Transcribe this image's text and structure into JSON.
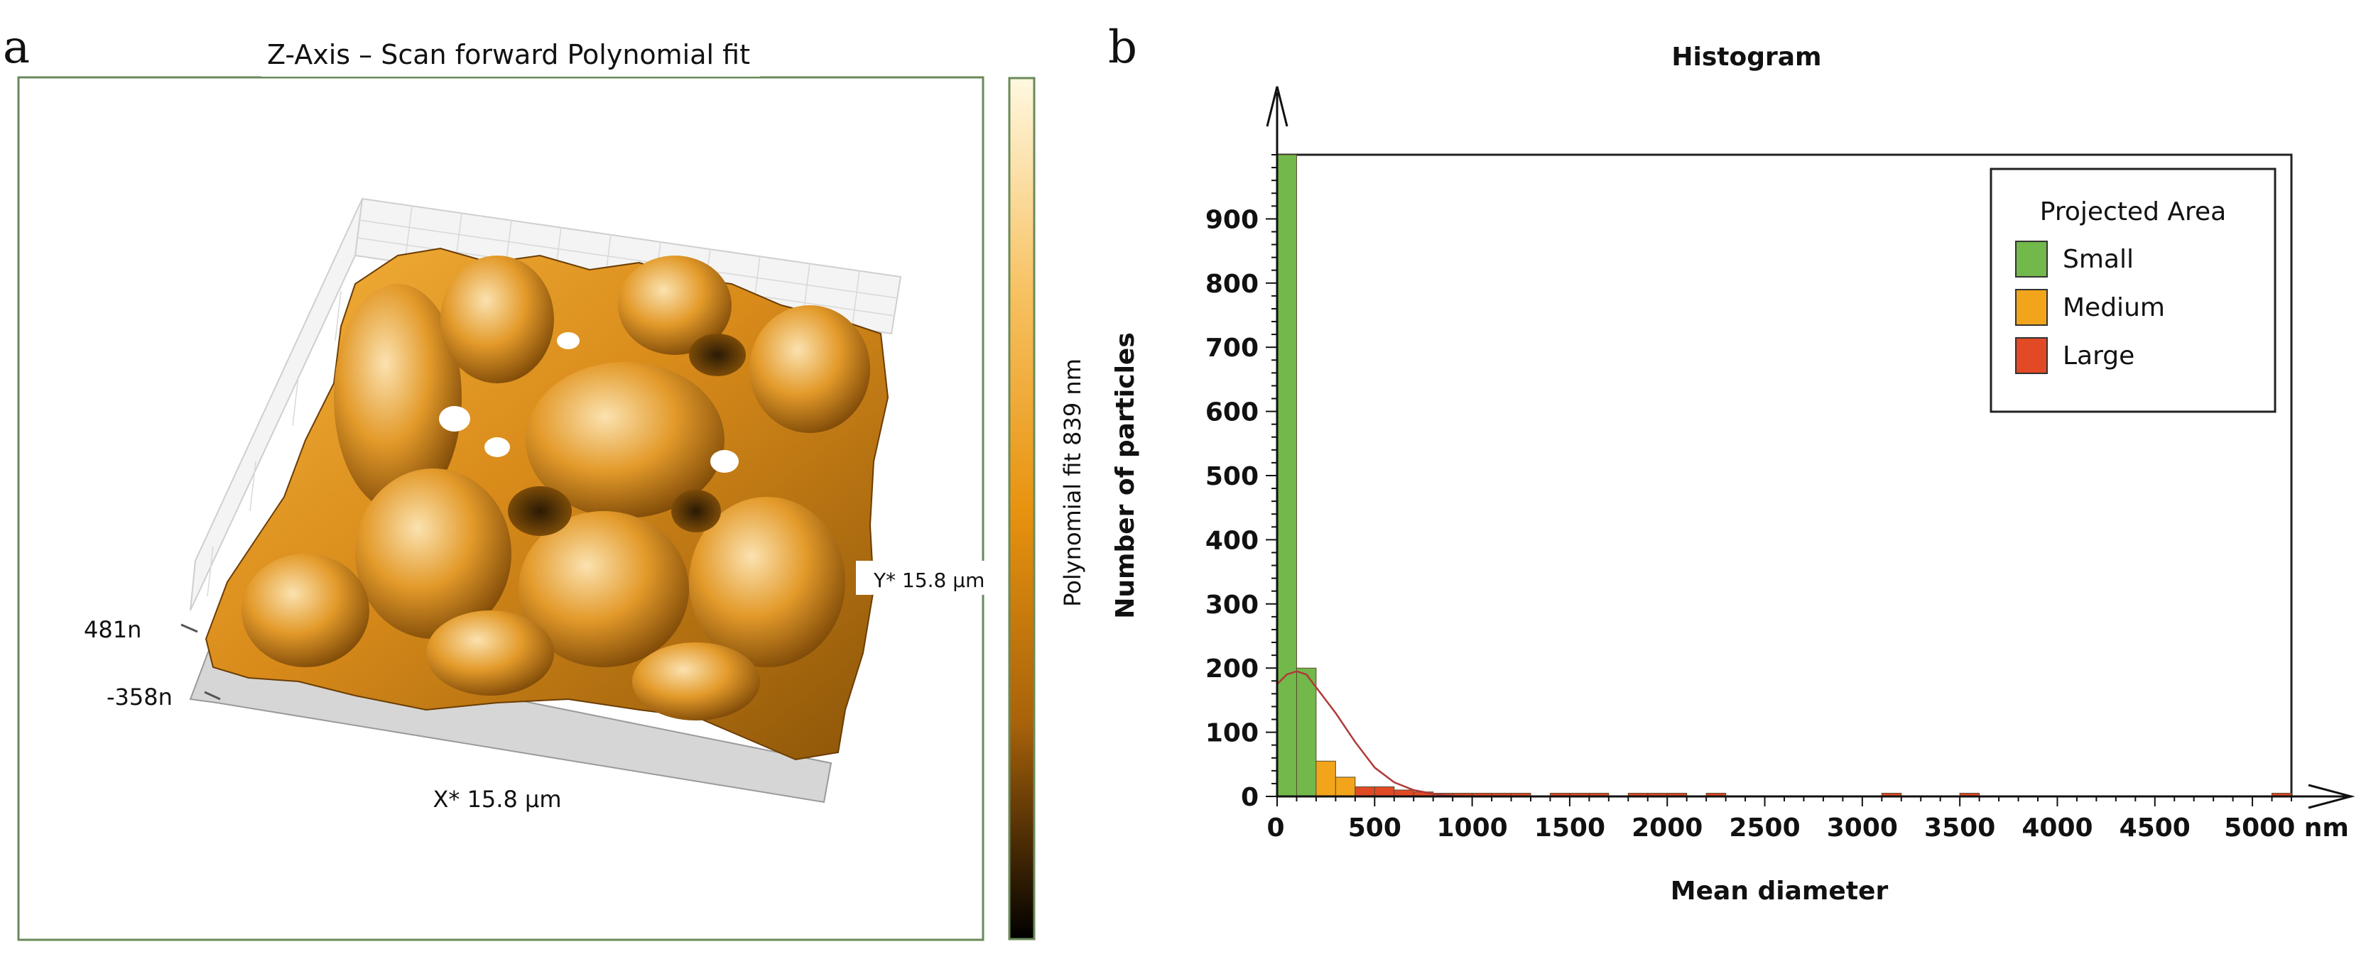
{
  "panel_a": {
    "letter": "a",
    "title": "Z-Axis – Scan forward Polynomial fit",
    "colorbar_label": "Polynomial fit 839 nm",
    "z_top_label": "481n",
    "z_bottom_label": "-358n",
    "x_axis_label": "X* 15.8 µm",
    "y_axis_label": "Y* 15.8 µm",
    "colorbar_colors": [
      "#fff8e0",
      "#f7c161",
      "#e8930f",
      "#a8620a",
      "#000000"
    ],
    "surface_color": "#d98b1a"
  },
  "panel_b": {
    "letter": "b"
  },
  "chart_data": {
    "type": "bar",
    "title": "Histogram",
    "xlabel": "Mean diameter",
    "ylabel": "Number of particles",
    "x_unit": "nm",
    "xlim": [
      0,
      5200
    ],
    "ylim": [
      0,
      1000
    ],
    "xticks": [
      0,
      500,
      1000,
      1500,
      2000,
      2500,
      3000,
      3500,
      4000,
      4500,
      5000
    ],
    "xtick_labels": [
      "0",
      "500",
      "1000",
      "1500",
      "2000",
      "2500",
      "3000",
      "3500",
      "4000",
      "4500",
      "5000 nm"
    ],
    "yticks": [
      0,
      100,
      200,
      300,
      400,
      500,
      600,
      700,
      800,
      900
    ],
    "yticks_minor_step": 20,
    "grid": false,
    "legend": {
      "title": "Projected Area",
      "position": "top-right"
    },
    "series": [
      {
        "name": "Small",
        "color": "#72b84a",
        "bins": [
          [
            0,
            100,
            1000
          ],
          [
            100,
            200,
            200
          ]
        ]
      },
      {
        "name": "Medium",
        "color": "#f2a51a",
        "bins": [
          [
            200,
            300,
            55
          ],
          [
            300,
            400,
            30
          ],
          [
            400,
            500,
            12
          ],
          [
            500,
            600,
            10
          ]
        ]
      },
      {
        "name": "Large",
        "color": "#e24a26",
        "bins": [
          [
            400,
            500,
            15
          ],
          [
            500,
            600,
            15
          ],
          [
            600,
            700,
            10
          ],
          [
            700,
            800,
            7
          ],
          [
            800,
            900,
            5
          ],
          [
            900,
            1000,
            5
          ],
          [
            1000,
            1100,
            5
          ],
          [
            1100,
            1200,
            5
          ],
          [
            1200,
            1300,
            5
          ],
          [
            1400,
            1500,
            5
          ],
          [
            1500,
            1600,
            5
          ],
          [
            1600,
            1700,
            5
          ],
          [
            1800,
            1900,
            5
          ],
          [
            1900,
            2000,
            5
          ],
          [
            2000,
            2100,
            5
          ],
          [
            2200,
            2300,
            5
          ],
          [
            3100,
            3200,
            5
          ],
          [
            3500,
            3600,
            5
          ],
          [
            5100,
            5200,
            5
          ]
        ]
      }
    ],
    "fit_curve": {
      "color": "#b03a3a",
      "points": [
        [
          0,
          175
        ],
        [
          50,
          190
        ],
        [
          100,
          195
        ],
        [
          150,
          190
        ],
        [
          200,
          170
        ],
        [
          300,
          130
        ],
        [
          400,
          85
        ],
        [
          500,
          45
        ],
        [
          600,
          22
        ],
        [
          700,
          10
        ],
        [
          800,
          4
        ],
        [
          900,
          1
        ],
        [
          1000,
          0
        ]
      ]
    }
  }
}
